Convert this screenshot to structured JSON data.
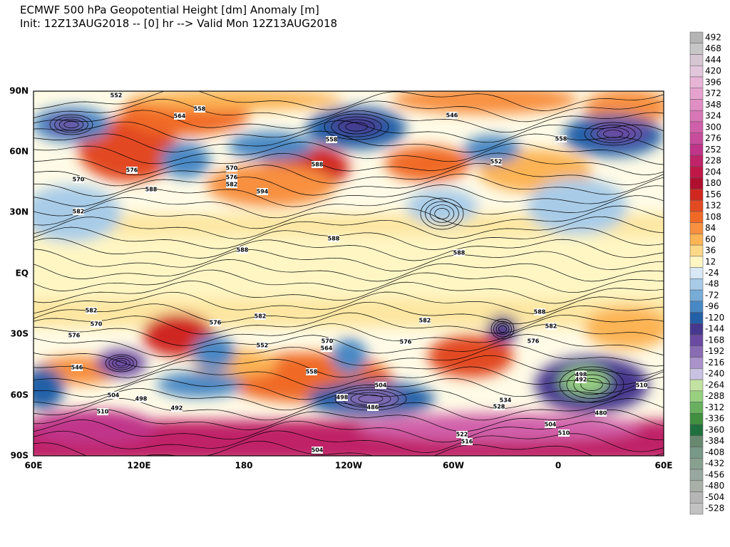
{
  "header": {
    "title": "ECMWF 500 hPa Geopotential Height [dm] Anomaly [m]",
    "subtitle": "Init: 12Z13AUG2018 -- [0] hr --> Valid Mon 12Z13AUG2018"
  },
  "map": {
    "x_labels": [
      "60E",
      "120E",
      "180",
      "120W",
      "60W",
      "0",
      "60E"
    ],
    "y_labels": [
      "90N",
      "60N",
      "30N",
      "EQ",
      "30S",
      "60S",
      "90S"
    ],
    "contour_labels": [
      "552",
      "564",
      "558",
      "570",
      "582",
      "576",
      "588",
      "570",
      "576",
      "582",
      "594",
      "588",
      "558",
      "546",
      "552",
      "558",
      "588",
      "588",
      "588",
      "582",
      "570",
      "576",
      "582",
      "576",
      "552",
      "570",
      "564",
      "582",
      "576",
      "588",
      "582",
      "576",
      "546",
      "558",
      "504",
      "498",
      "492",
      "510",
      "498",
      "504",
      "486",
      "534",
      "528",
      "504",
      "510",
      "522",
      "516",
      "498",
      "492",
      "480",
      "510",
      "504"
    ]
  },
  "colorbar": {
    "levels": [
      492,
      468,
      444,
      420,
      396,
      372,
      348,
      324,
      300,
      276,
      252,
      228,
      204,
      180,
      156,
      132,
      108,
      84,
      60,
      36,
      12,
      -24,
      -48,
      -72,
      -96,
      -120,
      -144,
      -168,
      -192,
      -216,
      -240,
      -264,
      -288,
      -312,
      -336,
      -360,
      -384,
      -408,
      -432,
      -456,
      -480,
      -504,
      -528
    ],
    "colors": [
      "#b4b4b4",
      "#c6c6c6",
      "#d6c6d2",
      "#e2c6dc",
      "#e8b4d6",
      "#e6a2ce",
      "#e08ec4",
      "#d876b6",
      "#d060aa",
      "#c84c9c",
      "#c0348a",
      "#c02468",
      "#c01848",
      "#b01030",
      "#d02820",
      "#e24a22",
      "#f06a26",
      "#f89040",
      "#fcb454",
      "#fdd888",
      "#fff6c4",
      "#d8e8f4",
      "#a8cce8",
      "#78acd8",
      "#4888c4",
      "#2460a8",
      "#46388e",
      "#6a4aa2",
      "#8a6cb4",
      "#aa92ca",
      "#cac2e2",
      "#c2e2a2",
      "#98d080",
      "#68b060",
      "#409040",
      "#207040",
      "#688870",
      "#789888",
      "#88a090",
      "#98a8a0",
      "#a8b0a8",
      "#b6b6b6",
      "#c2c2c2"
    ]
  }
}
